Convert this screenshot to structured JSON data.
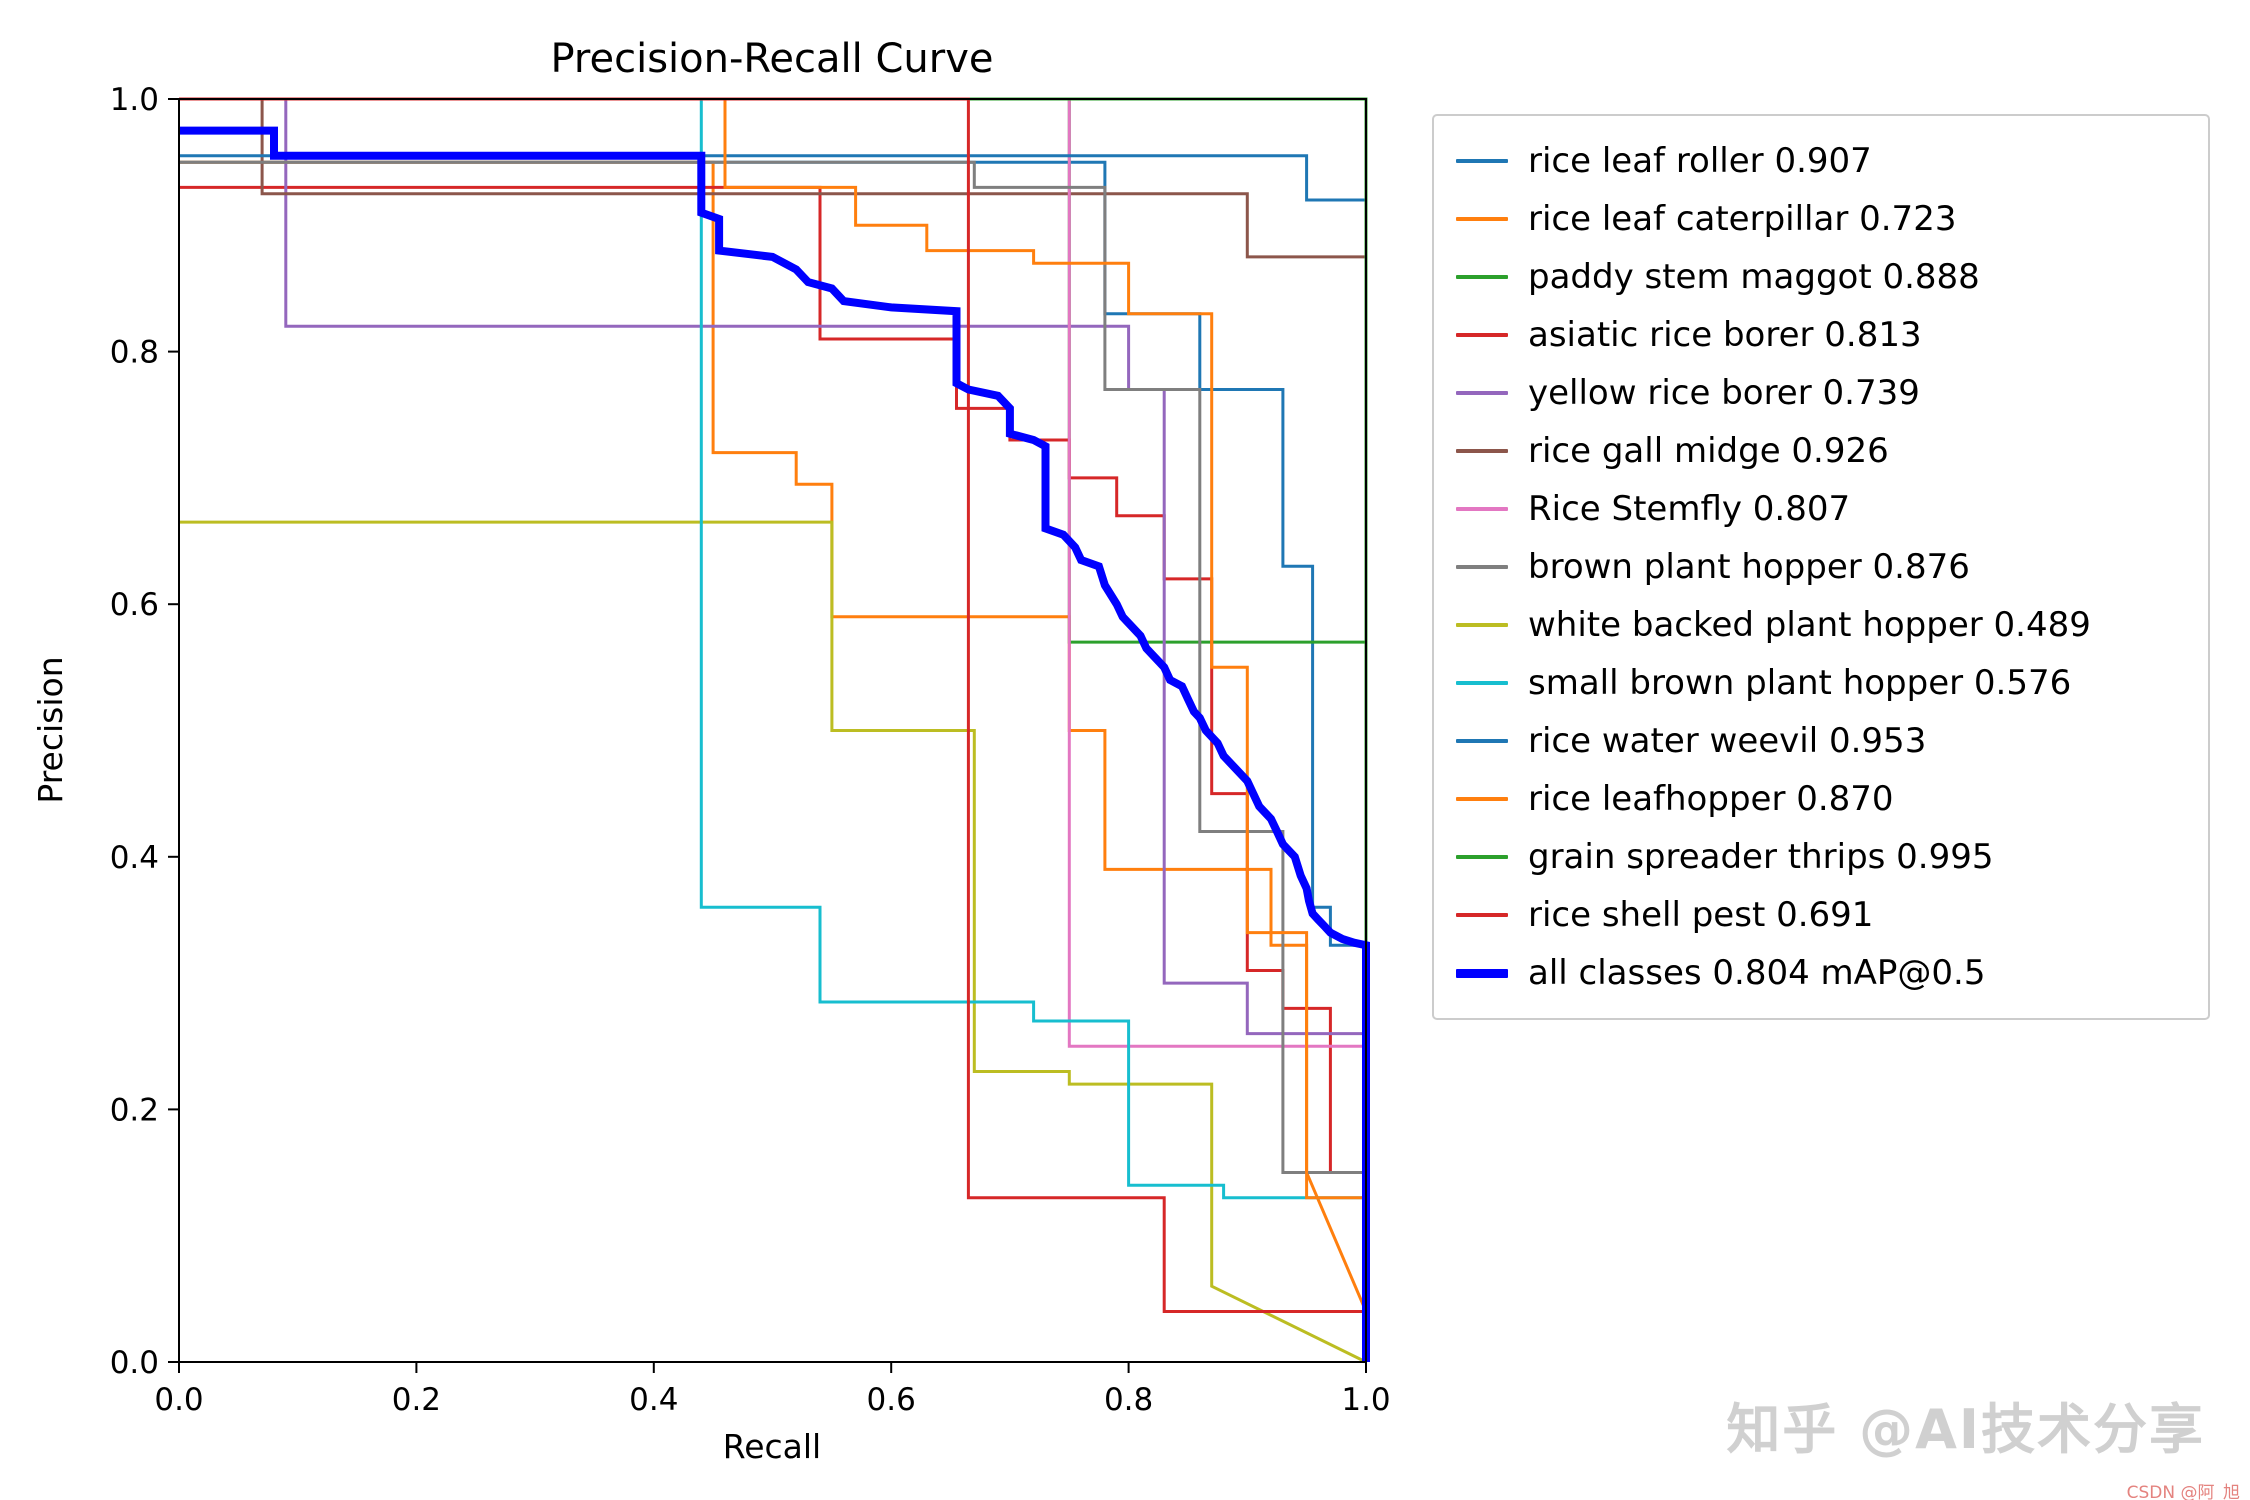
{
  "title": "Precision-Recall Curve",
  "watermark": {
    "main": "知乎 @AI技术分享",
    "sub": "CSDN @阿_旭"
  },
  "chart_data": {
    "type": "line",
    "title": "Precision-Recall Curve",
    "xlabel": "Recall",
    "ylabel": "Precision",
    "xlim": [
      0.0,
      1.0
    ],
    "ylim": [
      0.0,
      1.0
    ],
    "xticks": [
      0.0,
      0.2,
      0.4,
      0.6,
      0.8,
      1.0
    ],
    "yticks": [
      0.0,
      0.2,
      0.4,
      0.6,
      0.8,
      1.0
    ],
    "grid": false,
    "legend_position": "outside upper right",
    "series": [
      {
        "label": "rice leaf roller 0.907",
        "ap": 0.907,
        "color": "#1f77b4",
        "linewidth": 3,
        "points": [
          [
            0,
            0.95
          ],
          [
            0.78,
            0.95
          ],
          [
            0.78,
            0.83
          ],
          [
            0.86,
            0.83
          ],
          [
            0.86,
            0.77
          ],
          [
            0.93,
            0.77
          ],
          [
            0.93,
            0.63
          ],
          [
            0.955,
            0.63
          ],
          [
            0.955,
            0.36
          ],
          [
            0.97,
            0.36
          ],
          [
            0.97,
            0.33
          ],
          [
            1,
            0.33
          ],
          [
            1,
            0
          ]
        ]
      },
      {
        "label": "rice leaf caterpillar 0.723",
        "ap": 0.723,
        "color": "#ff7f0e",
        "linewidth": 3,
        "points": [
          [
            0,
            0.95
          ],
          [
            0.45,
            0.95
          ],
          [
            0.45,
            0.72
          ],
          [
            0.52,
            0.72
          ],
          [
            0.52,
            0.695
          ],
          [
            0.55,
            0.695
          ],
          [
            0.55,
            0.59
          ],
          [
            0.75,
            0.59
          ],
          [
            0.75,
            0.5
          ],
          [
            0.78,
            0.5
          ],
          [
            0.78,
            0.39
          ],
          [
            0.92,
            0.39
          ],
          [
            0.92,
            0.33
          ],
          [
            0.95,
            0.33
          ],
          [
            0.95,
            0.15
          ],
          [
            1,
            0.04
          ],
          [
            1,
            0
          ]
        ]
      },
      {
        "label": "paddy stem maggot 0.888",
        "ap": 0.888,
        "color": "#2ca02c",
        "linewidth": 3,
        "points": [
          [
            0,
            1
          ],
          [
            0.75,
            1
          ],
          [
            0.75,
            0.57
          ],
          [
            1,
            0.57
          ],
          [
            1,
            0
          ]
        ]
      },
      {
        "label": "asiatic rice borer 0.813",
        "ap": 0.813,
        "color": "#d62728",
        "linewidth": 3,
        "points": [
          [
            0,
            0.93
          ],
          [
            0.54,
            0.93
          ],
          [
            0.54,
            0.81
          ],
          [
            0.655,
            0.81
          ],
          [
            0.655,
            0.755
          ],
          [
            0.7,
            0.755
          ],
          [
            0.7,
            0.73
          ],
          [
            0.75,
            0.73
          ],
          [
            0.75,
            0.7
          ],
          [
            0.79,
            0.7
          ],
          [
            0.79,
            0.67
          ],
          [
            0.83,
            0.67
          ],
          [
            0.83,
            0.62
          ],
          [
            0.87,
            0.62
          ],
          [
            0.87,
            0.45
          ],
          [
            0.9,
            0.45
          ],
          [
            0.9,
            0.31
          ],
          [
            0.93,
            0.31
          ],
          [
            0.93,
            0.28
          ],
          [
            0.97,
            0.28
          ],
          [
            0.97,
            0.15
          ],
          [
            1,
            0.15
          ],
          [
            1,
            0
          ]
        ]
      },
      {
        "label": "yellow rice borer 0.739",
        "ap": 0.739,
        "color": "#9467bd",
        "linewidth": 3,
        "points": [
          [
            0,
            1
          ],
          [
            0.09,
            1
          ],
          [
            0.09,
            0.82
          ],
          [
            0.8,
            0.82
          ],
          [
            0.8,
            0.77
          ],
          [
            0.83,
            0.77
          ],
          [
            0.83,
            0.3
          ],
          [
            0.9,
            0.3
          ],
          [
            0.9,
            0.26
          ],
          [
            1,
            0.26
          ],
          [
            1,
            0
          ]
        ]
      },
      {
        "label": "rice gall midge 0.926",
        "ap": 0.926,
        "color": "#8c564b",
        "linewidth": 3,
        "points": [
          [
            0,
            1
          ],
          [
            0.07,
            1
          ],
          [
            0.07,
            0.925
          ],
          [
            0.9,
            0.925
          ],
          [
            0.9,
            0.875
          ],
          [
            1,
            0.875
          ],
          [
            1,
            0
          ]
        ]
      },
      {
        "label": "Rice Stemfly 0.807",
        "ap": 0.807,
        "color": "#e377c2",
        "linewidth": 3,
        "points": [
          [
            0,
            1
          ],
          [
            0.75,
            1
          ],
          [
            0.75,
            0.25
          ],
          [
            1,
            0.25
          ],
          [
            1,
            0
          ]
        ]
      },
      {
        "label": "brown plant hopper 0.876",
        "ap": 0.876,
        "color": "#7f7f7f",
        "linewidth": 3,
        "points": [
          [
            0,
            0.95
          ],
          [
            0.67,
            0.95
          ],
          [
            0.67,
            0.93
          ],
          [
            0.78,
            0.93
          ],
          [
            0.78,
            0.77
          ],
          [
            0.86,
            0.77
          ],
          [
            0.86,
            0.42
          ],
          [
            0.93,
            0.42
          ],
          [
            0.93,
            0.15
          ],
          [
            1,
            0.15
          ],
          [
            1,
            0
          ]
        ]
      },
      {
        "label": "white backed plant hopper 0.489",
        "ap": 0.489,
        "color": "#bcbd22",
        "linewidth": 3,
        "points": [
          [
            0,
            0.665
          ],
          [
            0.55,
            0.665
          ],
          [
            0.55,
            0.5
          ],
          [
            0.67,
            0.5
          ],
          [
            0.67,
            0.23
          ],
          [
            0.75,
            0.23
          ],
          [
            0.75,
            0.22
          ],
          [
            0.87,
            0.22
          ],
          [
            0.87,
            0.06
          ],
          [
            1,
            0
          ]
        ]
      },
      {
        "label": "small brown plant hopper 0.576",
        "ap": 0.576,
        "color": "#17becf",
        "linewidth": 3,
        "points": [
          [
            0,
            1
          ],
          [
            0.44,
            1
          ],
          [
            0.44,
            0.36
          ],
          [
            0.54,
            0.36
          ],
          [
            0.54,
            0.285
          ],
          [
            0.72,
            0.285
          ],
          [
            0.72,
            0.27
          ],
          [
            0.8,
            0.27
          ],
          [
            0.8,
            0.14
          ],
          [
            0.88,
            0.14
          ],
          [
            0.88,
            0.13
          ],
          [
            1,
            0.13
          ],
          [
            1,
            0
          ]
        ]
      },
      {
        "label": "rice water weevil 0.953",
        "ap": 0.953,
        "color": "#1f77b4",
        "linewidth": 3,
        "points": [
          [
            0,
            0.955
          ],
          [
            0.95,
            0.955
          ],
          [
            0.95,
            0.92
          ],
          [
            1,
            0.92
          ],
          [
            1,
            0
          ]
        ]
      },
      {
        "label": "rice leafhopper 0.870",
        "ap": 0.87,
        "color": "#ff7f0e",
        "linewidth": 3,
        "points": [
          [
            0,
            1
          ],
          [
            0.46,
            1
          ],
          [
            0.46,
            0.93
          ],
          [
            0.57,
            0.93
          ],
          [
            0.57,
            0.9
          ],
          [
            0.63,
            0.9
          ],
          [
            0.63,
            0.88
          ],
          [
            0.72,
            0.88
          ],
          [
            0.72,
            0.87
          ],
          [
            0.8,
            0.87
          ],
          [
            0.8,
            0.83
          ],
          [
            0.87,
            0.83
          ],
          [
            0.87,
            0.55
          ],
          [
            0.9,
            0.55
          ],
          [
            0.9,
            0.34
          ],
          [
            0.95,
            0.34
          ],
          [
            0.95,
            0.13
          ],
          [
            1,
            0.13
          ],
          [
            1,
            0
          ]
        ]
      },
      {
        "label": "grain spreader thrips 0.995",
        "ap": 0.995,
        "color": "#2ca02c",
        "linewidth": 3,
        "points": [
          [
            0,
            1
          ],
          [
            1,
            1
          ],
          [
            1,
            0
          ]
        ]
      },
      {
        "label": "rice shell pest 0.691",
        "ap": 0.691,
        "color": "#d62728",
        "linewidth": 3,
        "points": [
          [
            0,
            1
          ],
          [
            0.665,
            1
          ],
          [
            0.665,
            0.13
          ],
          [
            0.83,
            0.13
          ],
          [
            0.83,
            0.04
          ],
          [
            1,
            0.04
          ],
          [
            1,
            0
          ]
        ]
      },
      {
        "label": "all classes 0.804 mAP@0.5",
        "ap": 0.804,
        "color": "#0000ff",
        "linewidth": 8,
        "points": [
          [
            0,
            0.975
          ],
          [
            0.08,
            0.975
          ],
          [
            0.08,
            0.955
          ],
          [
            0.44,
            0.955
          ],
          [
            0.44,
            0.91
          ],
          [
            0.455,
            0.905
          ],
          [
            0.455,
            0.88
          ],
          [
            0.5,
            0.875
          ],
          [
            0.52,
            0.865
          ],
          [
            0.53,
            0.855
          ],
          [
            0.55,
            0.85
          ],
          [
            0.56,
            0.84
          ],
          [
            0.6,
            0.835
          ],
          [
            0.655,
            0.832
          ],
          [
            0.655,
            0.775
          ],
          [
            0.665,
            0.77
          ],
          [
            0.69,
            0.765
          ],
          [
            0.7,
            0.755
          ],
          [
            0.7,
            0.735
          ],
          [
            0.72,
            0.73
          ],
          [
            0.73,
            0.725
          ],
          [
            0.73,
            0.66
          ],
          [
            0.745,
            0.655
          ],
          [
            0.755,
            0.645
          ],
          [
            0.76,
            0.635
          ],
          [
            0.775,
            0.63
          ],
          [
            0.78,
            0.615
          ],
          [
            0.79,
            0.6
          ],
          [
            0.795,
            0.59
          ],
          [
            0.8,
            0.585
          ],
          [
            0.81,
            0.575
          ],
          [
            0.815,
            0.565
          ],
          [
            0.825,
            0.555
          ],
          [
            0.83,
            0.55
          ],
          [
            0.835,
            0.54
          ],
          [
            0.845,
            0.535
          ],
          [
            0.85,
            0.525
          ],
          [
            0.855,
            0.515
          ],
          [
            0.86,
            0.51
          ],
          [
            0.865,
            0.5
          ],
          [
            0.87,
            0.495
          ],
          [
            0.875,
            0.49
          ],
          [
            0.88,
            0.48
          ],
          [
            0.885,
            0.475
          ],
          [
            0.89,
            0.47
          ],
          [
            0.895,
            0.465
          ],
          [
            0.9,
            0.46
          ],
          [
            0.905,
            0.45
          ],
          [
            0.91,
            0.44
          ],
          [
            0.915,
            0.435
          ],
          [
            0.92,
            0.43
          ],
          [
            0.925,
            0.42
          ],
          [
            0.93,
            0.41
          ],
          [
            0.935,
            0.405
          ],
          [
            0.94,
            0.4
          ],
          [
            0.945,
            0.385
          ],
          [
            0.95,
            0.375
          ],
          [
            0.952,
            0.365
          ],
          [
            0.955,
            0.355
          ],
          [
            0.96,
            0.35
          ],
          [
            0.965,
            0.345
          ],
          [
            0.97,
            0.34
          ],
          [
            0.98,
            0.335
          ],
          [
            0.99,
            0.332
          ],
          [
            1,
            0.33
          ],
          [
            1,
            0
          ]
        ]
      }
    ]
  }
}
